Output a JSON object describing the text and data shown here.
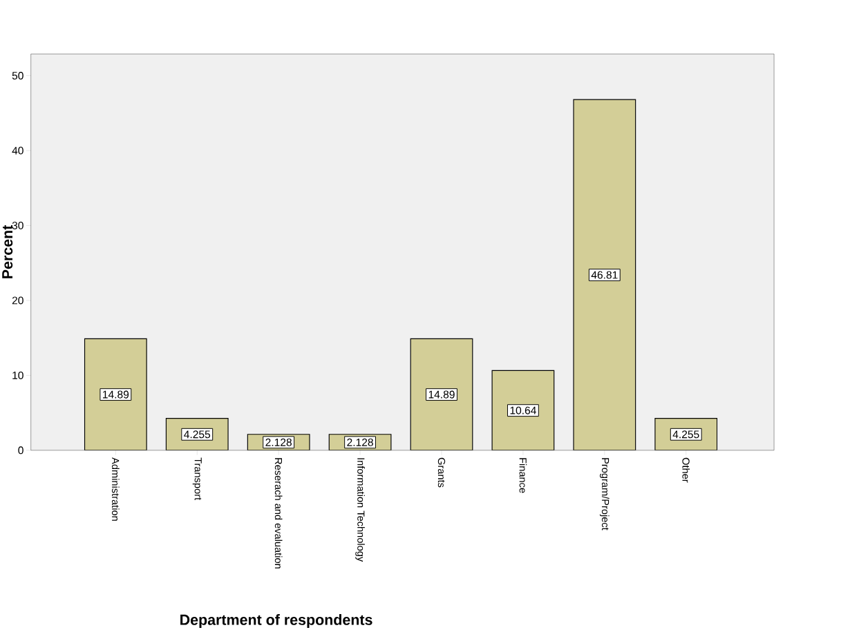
{
  "chart_data": {
    "type": "bar",
    "xlabel": "Department of respondents",
    "ylabel": "Percent",
    "categories": [
      "Administration",
      "Transport",
      "Reserach and evaluation",
      "Information Technology",
      "Grants",
      "Finance",
      "Program/Project",
      "Other"
    ],
    "values": [
      14.89,
      4.255,
      2.128,
      2.128,
      14.89,
      10.64,
      46.81,
      4.255
    ],
    "color": "#d3ce97",
    "ylim": [
      0,
      52.9
    ],
    "yticks": [
      0,
      10,
      20,
      30,
      40,
      50
    ],
    "data_labels": true,
    "grid": false
  }
}
